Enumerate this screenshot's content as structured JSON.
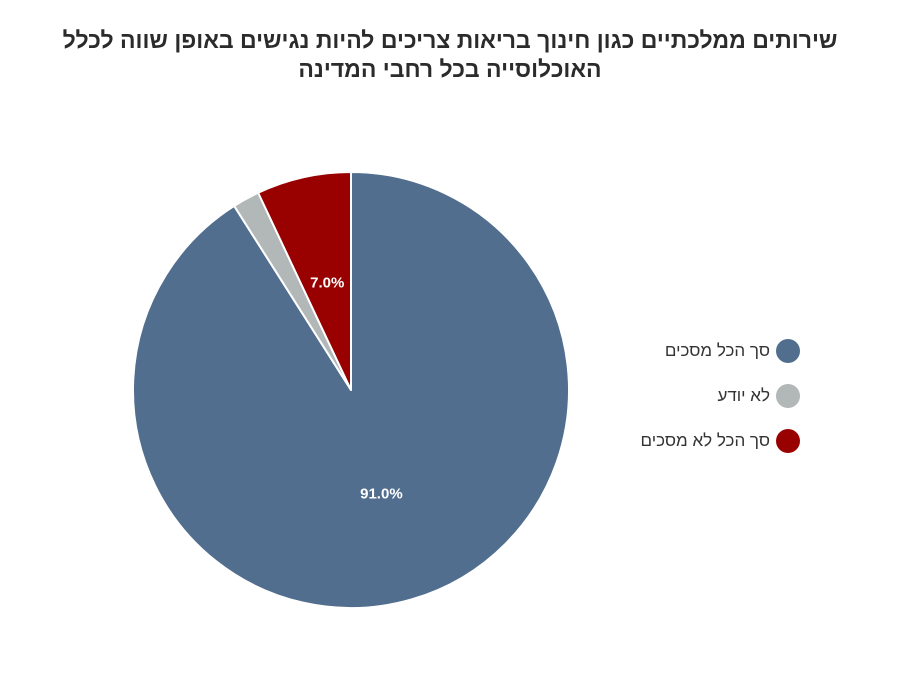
{
  "chart_data": {
    "type": "pie",
    "title": "שירותים ממלכתיים כגון חינוך בריאות צריכים להיות נגישים באופן שווה לכלל האוכלוסייה בכל רחבי המדינה",
    "title_lines": [
      "שירותים ממלכתיים כגון חינוך בריאות צריכים להיות נגישים באופן שווה לכלל",
      "האוכלוסייה בכל רחבי המדינה"
    ],
    "legend_position": "right",
    "slices": [
      {
        "name": "סך הכל מסכים",
        "value": 91.0,
        "label": "91.0%",
        "color": "#516e8f"
      },
      {
        "name": "לא יודע",
        "value": 2.0,
        "label": "",
        "color": "#b2b7b8"
      },
      {
        "name": "סך הכל לא מסכים",
        "value": 7.0,
        "label": "7.0%",
        "color": "#990000"
      }
    ]
  }
}
